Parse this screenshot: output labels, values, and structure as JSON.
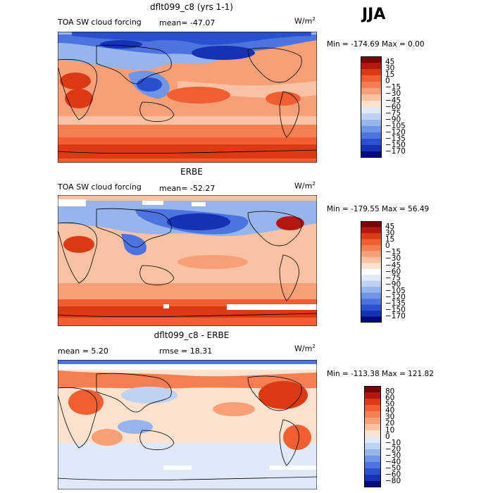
{
  "season": "JJA",
  "units_base": "W/m",
  "units_exp": "2",
  "colors": {
    "cb1": [
      "#7a0403",
      "#b2180f",
      "#dc3a14",
      "#ef5f32",
      "#f47f53",
      "#f7a078",
      "#f9c3a3",
      "#fbe2cf",
      "#dfe9f7",
      "#bdd3f1",
      "#95b5ec",
      "#6e95e6",
      "#4d73df",
      "#2a4fcf",
      "#1432b4",
      "#03087d"
    ],
    "cb2": [
      "#7a0403",
      "#b2180f",
      "#dc3a14",
      "#ef5f32",
      "#f47f53",
      "#f7a078",
      "#f9c3a3",
      "#fbe2cf",
      "#ffffff",
      "#dfe9f7",
      "#bdd3f1",
      "#95b5ec",
      "#6e95e6",
      "#4d73df",
      "#2a4fcf",
      "#1432b4",
      "#03087d"
    ]
  },
  "panels": [
    {
      "title": "dflt099_c8 (yrs 1-1)",
      "field": "TOA SW cloud forcing",
      "mean": "mean=  -47.07",
      "minmax": "Min = -174.69  Max =     0.00",
      "colorbar_labels": [
        "45",
        "30",
        "15",
        "0",
        "−15",
        "−30",
        "−45",
        "−60",
        "−75",
        "−90",
        "−105",
        "−120",
        "−135",
        "−150",
        "−170"
      ]
    },
    {
      "title": "ERBE",
      "field": "TOA SW cloud forcing",
      "mean": "mean=  -52.27",
      "minmax": "Min = -179.55  Max =   56.49",
      "colorbar_labels": [
        "45",
        "30",
        "15",
        "0",
        "−15",
        "−30",
        "−45",
        "−60",
        "−75",
        "−90",
        "−105",
        "−120",
        "−135",
        "−150",
        "−170"
      ]
    },
    {
      "title": "dflt099_c8 - ERBE",
      "mean": "mean =    5.20",
      "rmse": "rmse =   18.31",
      "minmax": "Min = -113.38  Max = 121.82",
      "colorbar_labels": [
        "80",
        "60",
        "50",
        "40",
        "30",
        "20",
        "10",
        "0",
        "−10",
        "−20",
        "−30",
        "−40",
        "−50",
        "−60",
        "−80"
      ]
    }
  ],
  "chart_data": [
    {
      "type": "heatmap",
      "title": "dflt099_c8 (yrs 1-1)",
      "subtitle": "TOA SW cloud forcing",
      "units": "W/m^2",
      "mean": -47.07,
      "min": -174.69,
      "max": 0.0,
      "colorbar_levels": [
        45,
        30,
        15,
        0,
        -15,
        -30,
        -45,
        -60,
        -75,
        -90,
        -105,
        -120,
        -135,
        -150,
        -170
      ]
    },
    {
      "type": "heatmap",
      "title": "ERBE",
      "subtitle": "TOA SW cloud forcing",
      "units": "W/m^2",
      "mean": -52.27,
      "min": -179.55,
      "max": 56.49,
      "colorbar_levels": [
        45,
        30,
        15,
        0,
        -15,
        -30,
        -45,
        -60,
        -75,
        -90,
        -105,
        -120,
        -135,
        -150,
        -170
      ]
    },
    {
      "type": "heatmap",
      "title": "dflt099_c8 - ERBE",
      "units": "W/m^2",
      "mean": 5.2,
      "rmse": 18.31,
      "min": -113.38,
      "max": 121.82,
      "colorbar_levels": [
        80,
        60,
        50,
        40,
        30,
        20,
        10,
        0,
        -10,
        -20,
        -30,
        -40,
        -50,
        -60,
        -80
      ]
    }
  ]
}
